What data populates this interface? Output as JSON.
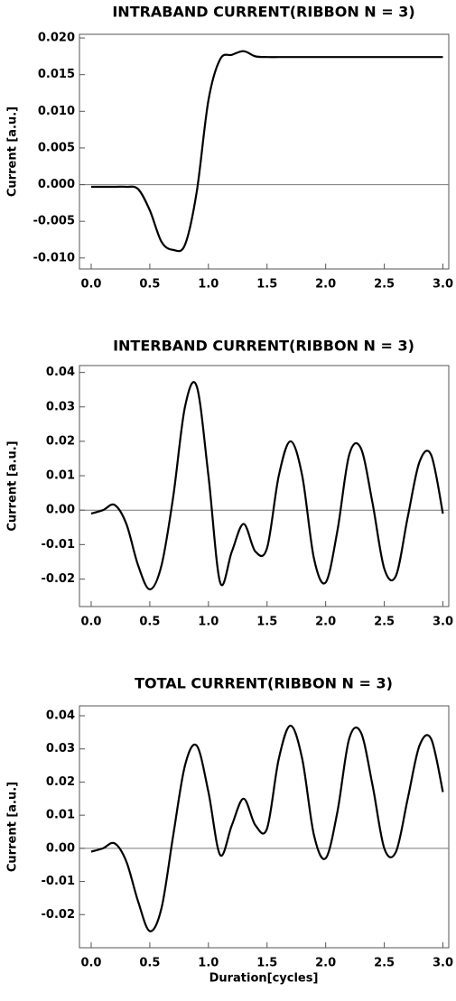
{
  "chart_data": [
    {
      "type": "line",
      "title": "INTRABAND CURRENT(RIBBON N = 3)",
      "ylabel": "Current [a.u.]",
      "x": [
        0,
        0.1,
        0.2,
        0.3,
        0.4,
        0.5,
        0.6,
        0.7,
        0.8,
        0.9,
        1.0,
        1.1,
        1.2,
        1.3,
        1.4,
        1.5,
        1.6,
        1.7,
        1.8,
        1.9,
        2.0,
        2.1,
        2.2,
        2.3,
        2.4,
        2.5,
        2.6,
        2.7,
        2.8,
        2.9,
        3.0
      ],
      "series": [
        {
          "color": "#000000",
          "values": [
            -0.0003,
            -0.0003,
            -0.0003,
            -0.0003,
            -0.0006,
            -0.0035,
            -0.0078,
            -0.0089,
            -0.0082,
            -0.001,
            0.0115,
            0.0171,
            0.0177,
            0.0182,
            0.0175,
            0.0174,
            0.0174,
            0.0174,
            0.0174,
            0.0174,
            0.0174,
            0.0174,
            0.0174,
            0.0174,
            0.0174,
            0.0174,
            0.0174,
            0.0174,
            0.0174,
            0.0174,
            0.0174
          ]
        }
      ],
      "xlim": [
        -0.1,
        3.05
      ],
      "ylim": [
        -0.0115,
        0.0205
      ],
      "xticks": [
        {
          "value": 0,
          "label": "0.0"
        },
        0.5,
        {
          "value": 1,
          "label": "1.0"
        },
        1.5,
        {
          "value": 2,
          "label": "2.0"
        },
        2.5,
        {
          "value": 3,
          "label": "3.0"
        }
      ],
      "yticks": [
        {
          "value": -0.01,
          "label": "-0.010"
        },
        {
          "value": -0.005,
          "label": "-0.005"
        },
        {
          "value": 0,
          "label": "0.000"
        },
        {
          "value": 0.005,
          "label": "0.005"
        },
        {
          "value": 0.01,
          "label": "0.010"
        },
        {
          "value": 0.015,
          "label": "0.015"
        },
        {
          "value": 0.02,
          "label": "0.020"
        }
      ]
    },
    {
      "type": "line",
      "title": "INTERBAND CURRENT(RIBBON N = 3)",
      "ylabel": "Current [a.u.]",
      "x": [
        0,
        0.1,
        0.2,
        0.3,
        0.4,
        0.5,
        0.6,
        0.7,
        0.8,
        0.9,
        1.0,
        1.1,
        1.2,
        1.3,
        1.4,
        1.5,
        1.6,
        1.7,
        1.8,
        1.9,
        2.0,
        2.1,
        2.2,
        2.3,
        2.4,
        2.5,
        2.6,
        2.7,
        2.8,
        2.9,
        3.0
      ],
      "series": [
        {
          "color": "#000000",
          "values": [
            -0.001,
            0.0,
            0.0015,
            -0.004,
            -0.016,
            -0.023,
            -0.016,
            0.004,
            0.03,
            0.036,
            0.01,
            -0.021,
            -0.012,
            -0.004,
            -0.012,
            -0.011,
            0.01,
            0.02,
            0.01,
            -0.014,
            -0.021,
            -0.006,
            0.016,
            0.018,
            0.002,
            -0.017,
            -0.019,
            -0.002,
            0.014,
            0.016,
            -0.001
          ]
        }
      ],
      "xlim": [
        -0.1,
        3.05
      ],
      "ylim": [
        -0.028,
        0.042
      ],
      "xticks": [
        {
          "value": 0,
          "label": "0.0"
        },
        0.5,
        {
          "value": 1,
          "label": "1.0"
        },
        1.5,
        {
          "value": 2,
          "label": "2.0"
        },
        2.5,
        {
          "value": 3,
          "label": "3.0"
        }
      ],
      "yticks": [
        {
          "value": -0.02,
          "label": "-0.02"
        },
        {
          "value": -0.01,
          "label": "-0.01"
        },
        {
          "value": 0,
          "label": "0.00"
        },
        0.01,
        0.02,
        0.03,
        0.04
      ]
    },
    {
      "type": "line",
      "title": "TOTAL CURRENT(RIBBON N = 3)",
      "ylabel": "Current [a.u.]",
      "xlabel": "Duration[cycles]",
      "x": [
        0,
        0.1,
        0.2,
        0.3,
        0.4,
        0.5,
        0.6,
        0.7,
        0.8,
        0.9,
        1.0,
        1.1,
        1.2,
        1.3,
        1.4,
        1.5,
        1.6,
        1.7,
        1.8,
        1.9,
        2.0,
        2.1,
        2.2,
        2.3,
        2.4,
        2.5,
        2.6,
        2.7,
        2.8,
        2.9,
        3.0
      ],
      "series": [
        {
          "color": "#000000",
          "values": [
            -0.001,
            0.0,
            0.0015,
            -0.004,
            -0.016,
            -0.025,
            -0.018,
            0.004,
            0.025,
            0.031,
            0.017,
            -0.002,
            0.007,
            0.015,
            0.007,
            0.006,
            0.027,
            0.037,
            0.027,
            0.004,
            -0.003,
            0.011,
            0.033,
            0.035,
            0.019,
            0.0,
            -0.001,
            0.015,
            0.031,
            0.033,
            0.017
          ]
        }
      ],
      "xlim": [
        -0.1,
        3.05
      ],
      "ylim": [
        -0.03,
        0.043
      ],
      "xticks": [
        {
          "value": 0,
          "label": "0.0"
        },
        0.5,
        {
          "value": 1,
          "label": "1.0"
        },
        1.5,
        {
          "value": 2,
          "label": "2.0"
        },
        2.5,
        {
          "value": 3,
          "label": "3.0"
        }
      ],
      "yticks": [
        {
          "value": -0.02,
          "label": "-0.02"
        },
        {
          "value": -0.01,
          "label": "-0.01"
        },
        {
          "value": 0,
          "label": "0.00"
        },
        0.01,
        0.02,
        0.03,
        0.04
      ]
    }
  ]
}
